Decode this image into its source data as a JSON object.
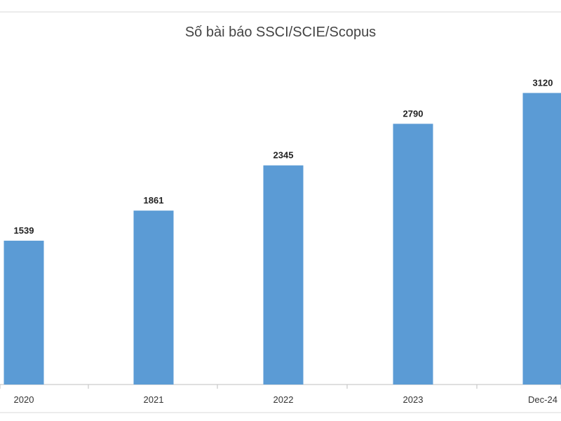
{
  "chart_data": {
    "type": "bar",
    "title": "Số bài báo SSCI/SCIE/Scopus",
    "categories": [
      "2020",
      "2021",
      "2022",
      "2023",
      "Dec-24"
    ],
    "values": [
      1539,
      1861,
      2345,
      2790,
      3120
    ],
    "xlabel": "",
    "ylabel": "",
    "ylim": [
      0,
      3500
    ],
    "grid": false,
    "legend": "none",
    "bar_color": "#5b9bd5"
  }
}
